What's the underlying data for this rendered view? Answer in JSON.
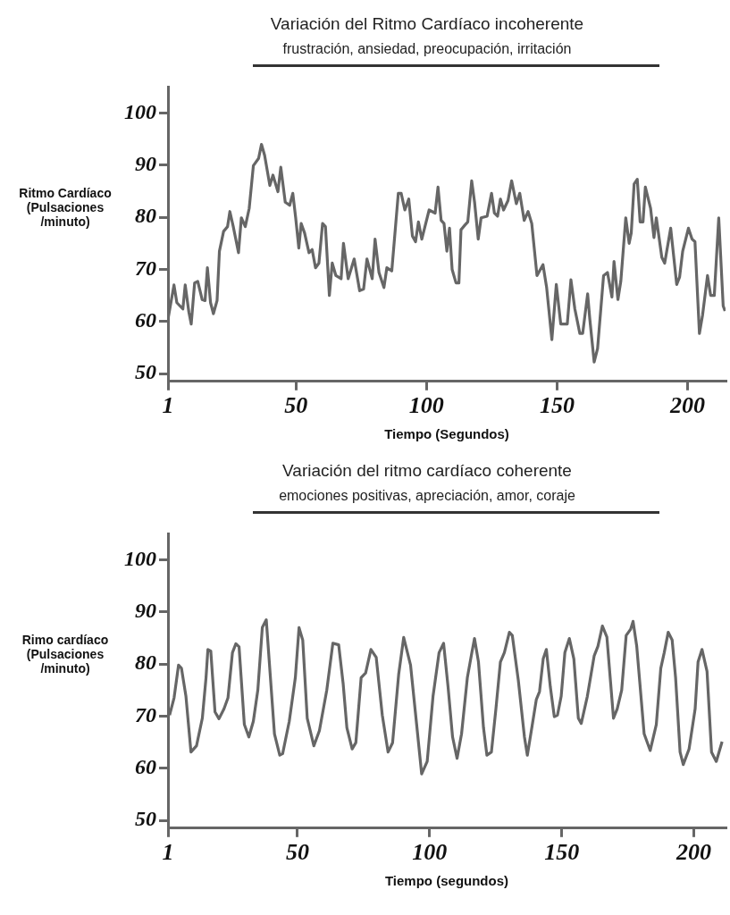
{
  "chart_data": [
    {
      "type": "line",
      "title": "Variación del Ritmo Cardíaco incoherente",
      "subtitle": "frustración, ansiedad, preocupación, irritación",
      "xlabel": "Tiempo (Segundos)",
      "ylabel": "Ritmo Cardíaco (Pulsaciones /minuto)",
      "color": "#666666",
      "grid": false,
      "xlim": [
        1,
        214.5
      ],
      "xticks": [
        1,
        50,
        100,
        150,
        200
      ],
      "ylim": [
        48.5,
        105
      ],
      "yticks": [
        50,
        60,
        70,
        80,
        90,
        100
      ],
      "x": [
        1,
        3.3,
        4.4,
        6.7,
        7.6,
        9,
        9.9,
        11.2,
        12.4,
        14.1,
        15.2,
        16.1,
        17.3,
        18.4,
        19.8,
        20.7,
        22.3,
        23.8,
        24.7,
        26,
        28,
        29.1,
        30.6,
        32.1,
        33.7,
        35.7,
        36.8,
        38,
        40,
        41.2,
        43.1,
        44.2,
        45.9,
        47.6,
        48.8,
        49.9,
        51.1,
        52,
        53.3,
        55,
        56.2,
        57.5,
        58.8,
        60.2,
        61.3,
        62.8,
        63.9,
        65.3,
        67.3,
        68.2,
        70,
        72.3,
        74.4,
        75.9,
        77.2,
        79.2,
        80.3,
        81.8,
        83.7,
        84.8,
        86.7,
        89.2,
        90.3,
        91.7,
        93.2,
        94.6,
        95.8,
        96.9,
        98.2,
        101,
        103.3,
        104.4,
        105.6,
        106.7,
        107.8,
        108.8,
        109.8,
        111.3,
        112.4,
        113.2,
        114.7,
        115.8,
        117.3,
        118.4,
        119.8,
        120.9,
        123.2,
        124.9,
        126,
        127.2,
        128.3,
        129.5,
        131.2,
        132.6,
        134.4,
        135.7,
        137.4,
        138.9,
        140.3,
        142.3,
        144.6,
        146,
        148,
        149.7,
        151.4,
        153.9,
        155.3,
        156.8,
        158.7,
        159.8,
        161.7,
        162.5,
        164.2,
        165.5,
        167.8,
        169.3,
        171,
        171.8,
        173.3,
        174.4,
        176.3,
        177.6,
        178.4,
        179.5,
        180.7,
        181.8,
        182.9,
        183.8,
        185.8,
        187.1,
        188,
        190.1,
        191.2,
        193.5,
        195.8,
        196.9,
        198.1,
        200.3,
        201.7,
        202.8,
        204.5,
        205.7,
        207.6,
        208.8,
        210.2,
        211.9,
        213.6,
        214.3
      ],
      "values": [
        60.4,
        67,
        63.6,
        62.4,
        67,
        61.8,
        59.5,
        67.4,
        67.7,
        64.2,
        64,
        70.3,
        63.6,
        61.5,
        64,
        73.5,
        77.3,
        78.2,
        81.1,
        78.2,
        73.2,
        79.9,
        78.2,
        81.7,
        89.9,
        91.3,
        94,
        91.9,
        86.1,
        88.1,
        84.9,
        89.6,
        82.9,
        82.3,
        84.6,
        79.9,
        74.1,
        78.8,
        77,
        73.2,
        73.8,
        70.3,
        71.2,
        78.8,
        78.2,
        65,
        71.2,
        68.8,
        68.2,
        75,
        68.2,
        72,
        65.9,
        66.2,
        72,
        68.2,
        75.8,
        69.4,
        66.5,
        70.3,
        69.7,
        84.6,
        84.6,
        81.4,
        83.5,
        76.4,
        75.3,
        79.1,
        75.8,
        81.4,
        80.8,
        85.8,
        79.4,
        78.8,
        73.5,
        77.9,
        70,
        67.4,
        67.4,
        77.6,
        78.5,
        79.1,
        87,
        82.9,
        75.8,
        79.9,
        80.2,
        84.6,
        80.8,
        80.2,
        83.5,
        81.4,
        83.2,
        87,
        82.6,
        84.6,
        79.4,
        81.1,
        78.8,
        68.8,
        70.9,
        66.5,
        56.5,
        67.1,
        59.5,
        59.5,
        68,
        62.4,
        57.7,
        57.7,
        65.3,
        60.6,
        52.2,
        54.8,
        68.8,
        69.4,
        64.7,
        71.5,
        64.2,
        67.7,
        79.9,
        75,
        77,
        86.4,
        87.3,
        79.1,
        79.1,
        85.8,
        81.7,
        76.1,
        79.9,
        72.3,
        71.2,
        77.9,
        67.1,
        68.5,
        73.5,
        77.9,
        75.8,
        75.3,
        57.7,
        61.2,
        68.8,
        65,
        65,
        79.9,
        63,
        62
      ]
    },
    {
      "type": "line",
      "title": "Variación del ritmo cardíaco coherente",
      "subtitle": "emociones positivas, apreciación, amor, coraje",
      "xlabel": "Tiempo (segundos)",
      "ylabel": "Rimo cardíaco (Pulsaciones /minuto)",
      "color": "#666666",
      "grid": false,
      "xlim": [
        1,
        212
      ],
      "xticks": [
        1,
        50,
        100,
        150,
        200
      ],
      "ylim": [
        48.5,
        105
      ],
      "yticks": [
        50,
        60,
        70,
        80,
        90,
        100
      ],
      "x": [
        1.6,
        3.3,
        5,
        6.1,
        7.8,
        9.7,
        11.8,
        14,
        15.4,
        16.1,
        17.2,
        18.8,
        20.3,
        22.2,
        23.7,
        25.4,
        26.7,
        27.9,
        29.9,
        31.6,
        33.3,
        35,
        36.7,
        38.2,
        39.6,
        41.3,
        43.3,
        44.4,
        46.9,
        49.2,
        50.6,
        52,
        53.7,
        56.2,
        58.3,
        61.1,
        63.4,
        65.6,
        67.3,
        68.7,
        70.7,
        72.1,
        74.1,
        75.8,
        77.8,
        79.8,
        82.1,
        84.3,
        86,
        88.3,
        90.2,
        92.8,
        95.1,
        97,
        99.1,
        101.3,
        103.6,
        105.3,
        107,
        108.7,
        110.4,
        112.1,
        114.3,
        116,
        117,
        118.5,
        120.4,
        121.7,
        123.4,
        125.1,
        126.8,
        128.3,
        130.2,
        131.3,
        133.6,
        135.9,
        137,
        138.7,
        140.4,
        141.6,
        143,
        144.2,
        145.7,
        147.2,
        148.4,
        149.8,
        151.2,
        152.9,
        154.6,
        156.3,
        157.4,
        159.7,
        162.3,
        163.7,
        165.4,
        167.1,
        169.6,
        171,
        172.7,
        174.4,
        176.1,
        177,
        178.4,
        181.2,
        183.5,
        185.8,
        187.5,
        188.8,
        190.3,
        191.8,
        193.1,
        194.8,
        196,
        198.2,
        200.5,
        201.6,
        203.1,
        205,
        206.7,
        208.5,
        210.7
      ],
      "values": [
        70.2,
        73.5,
        79.8,
        79.2,
        73.8,
        63.1,
        64.3,
        69.6,
        77.4,
        82.8,
        82.5,
        70.8,
        69.5,
        71.4,
        73.5,
        82.2,
        83.9,
        83.3,
        68.4,
        66,
        69,
        75,
        87,
        88.5,
        78.6,
        66.6,
        62.5,
        62.8,
        69,
        77.4,
        87,
        84.6,
        69.6,
        64.3,
        67.2,
        75,
        84,
        83.7,
        76.2,
        67.8,
        63.7,
        64.9,
        77.4,
        78.3,
        82.8,
        81.3,
        70.2,
        63.1,
        64.9,
        78,
        85.1,
        79.8,
        68.4,
        58.9,
        61.3,
        73.8,
        82.2,
        84,
        75.6,
        66,
        61.9,
        66.6,
        77.4,
        82.2,
        84.9,
        80.4,
        67.8,
        62.5,
        63.1,
        71.4,
        80.4,
        82.2,
        86.1,
        85.5,
        76.8,
        66,
        62.5,
        67.8,
        73.2,
        74.7,
        81,
        82.8,
        75.6,
        69.9,
        70.2,
        73.8,
        82.2,
        84.9,
        81,
        69.6,
        68.6,
        73.8,
        81.6,
        83.4,
        87.3,
        85.2,
        69.6,
        71.4,
        75,
        85.5,
        86.7,
        88.2,
        83.4,
        66.6,
        63.4,
        68.4,
        79.2,
        82.2,
        86.1,
        84.6,
        77.4,
        63.1,
        60.7,
        63.7,
        71.4,
        80.4,
        82.8,
        78.6,
        63.1,
        61.3,
        65.1
      ]
    }
  ]
}
